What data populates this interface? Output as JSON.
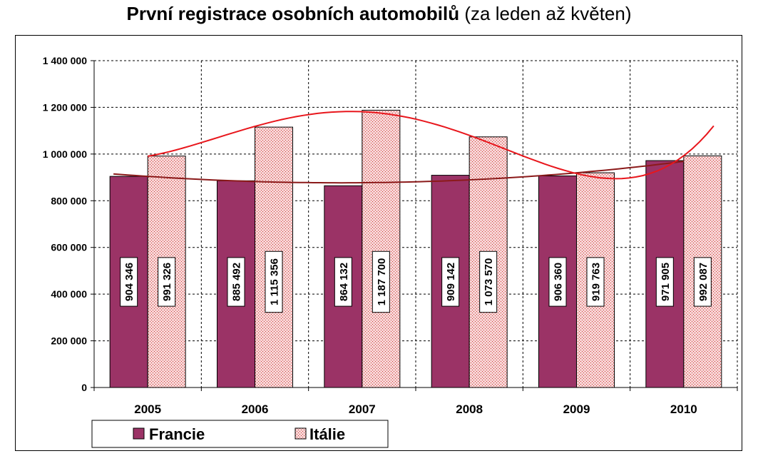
{
  "title": {
    "main": "První registrace osobních automobilů",
    "sub": "(za leden až květen)"
  },
  "colors": {
    "francie": "#9b3366",
    "italie_bg": "#f6d6d6",
    "italie_dot": "#d23030",
    "trend_francie": "#8b1a1a",
    "trend_italie": "#e8161c",
    "grid": "#000000"
  },
  "chart_data": {
    "type": "bar",
    "categories": [
      "2005",
      "2006",
      "2007",
      "2008",
      "2009",
      "2010"
    ],
    "series": [
      {
        "name": "Francie",
        "values": [
          904346,
          885492,
          864132,
          909142,
          906360,
          971905
        ],
        "labels": [
          "904 346",
          "885 492",
          "864 132",
          "909 142",
          "906 360",
          "971 905"
        ]
      },
      {
        "name": "Itálie",
        "values": [
          991326,
          1115356,
          1187700,
          1073570,
          919763,
          992087
        ],
        "labels": [
          "991 326",
          "1 115 356",
          "1 187 700",
          "1 073 570",
          "919 763",
          "992 087"
        ]
      }
    ],
    "trendlines": [
      {
        "series": "Francie",
        "type": "polynomial"
      },
      {
        "series": "Itálie",
        "type": "polynomial"
      }
    ],
    "ylim": [
      0,
      1400000
    ],
    "yticks": [
      0,
      200000,
      400000,
      600000,
      800000,
      1000000,
      1200000,
      1400000
    ],
    "ytick_labels": [
      "0",
      "200 000",
      "400 000",
      "600 000",
      "800 000",
      "1 000 000",
      "1 200 000",
      "1 400 000"
    ],
    "grid": true,
    "legend_position": "bottom-left"
  }
}
